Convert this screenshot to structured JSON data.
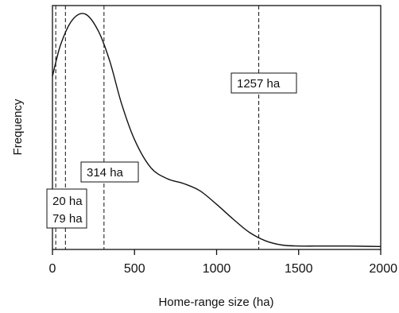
{
  "chart_data": {
    "type": "line",
    "xlabel": "Home-range size (ha)",
    "ylabel": "Frequency",
    "xlim": [
      0,
      2000
    ],
    "ylim": [
      0,
      1.0
    ],
    "x_ticks": [
      "0",
      "500",
      "1000",
      "1500",
      "2000"
    ],
    "x_tick_values": [
      0,
      500,
      1000,
      1500,
      2000
    ],
    "grid": false,
    "legend": "none",
    "series": [
      {
        "x": [
          0,
          50,
          120,
          200,
          280,
          350,
          420,
          500,
          600,
          700,
          800,
          900,
          1000,
          1100,
          1200,
          1300,
          1400,
          1500,
          1600,
          1700,
          1800,
          1900,
          2000
        ],
        "y": [
          0.71,
          0.84,
          0.94,
          0.965,
          0.895,
          0.77,
          0.6,
          0.45,
          0.335,
          0.29,
          0.27,
          0.24,
          0.185,
          0.125,
          0.07,
          0.035,
          0.018,
          0.014,
          0.014,
          0.014,
          0.014,
          0.013,
          0.012
        ]
      }
    ],
    "reference_lines": [
      {
        "x": 20,
        "label": "20 ha"
      },
      {
        "x": 79,
        "label": "79 ha"
      },
      {
        "x": 314,
        "label": "314 ha"
      },
      {
        "x": 1257,
        "label": "1257 ha"
      }
    ],
    "colors": {
      "line": "#111111",
      "axis": "#111111",
      "background": "#ffffff"
    }
  }
}
